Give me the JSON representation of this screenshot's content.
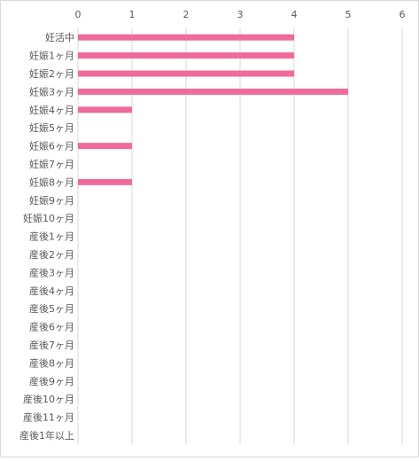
{
  "chart_data": {
    "type": "bar",
    "orientation": "horizontal",
    "categories": [
      "妊活中",
      "妊娠1ヶ月",
      "妊娠2ヶ月",
      "妊娠3ヶ月",
      "妊娠4ヶ月",
      "妊娠5ヶ月",
      "妊娠6ヶ月",
      "妊娠7ヶ月",
      "妊娠8ヶ月",
      "妊娠9ヶ月",
      "妊娠10ヶ月",
      "産後1ヶ月",
      "産後2ヶ月",
      "産後3ヶ月",
      "産後4ヶ月",
      "産後5ヶ月",
      "産後6ヶ月",
      "産後7ヶ月",
      "産後8ヶ月",
      "産後9ヶ月",
      "産後10ヶ月",
      "産後11ヶ月",
      "産後1年以上"
    ],
    "values": [
      4,
      4,
      4,
      5,
      1,
      0,
      1,
      0,
      1,
      0,
      0,
      0,
      0,
      0,
      0,
      0,
      0,
      0,
      0,
      0,
      0,
      0,
      0
    ],
    "x_ticks": [
      "0",
      "1",
      "2",
      "3",
      "4",
      "5",
      "6"
    ],
    "xlim": [
      0,
      6
    ],
    "axis_position": "top",
    "grid": true,
    "legend": "none",
    "colors": {
      "bar": "#f06b9b",
      "grid": "#d9d9d9",
      "text": "#595959"
    }
  }
}
